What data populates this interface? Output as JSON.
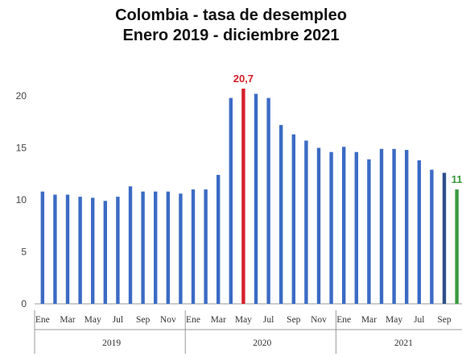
{
  "chart_data": {
    "type": "bar",
    "title": "Colombia - tasa de desempleo",
    "subtitle": "Enero 2019 - diciembre 2021",
    "xlabel": "",
    "ylabel": "",
    "ylim": [
      0,
      22
    ],
    "yticks": [
      "0",
      "5",
      "10",
      "15",
      "20"
    ],
    "month_labels": [
      "Ene",
      "Mar",
      "May",
      "Jul",
      "Sep",
      "Nov",
      "Ene",
      "Mar",
      "May",
      "Jul",
      "Sep",
      "Nov",
      "Ene",
      "Mar",
      "May",
      "Jul",
      "Sep"
    ],
    "years": [
      "2019",
      "2020",
      "2021"
    ],
    "values": [
      10.8,
      10.5,
      10.5,
      10.3,
      10.2,
      9.9,
      10.3,
      11.3,
      10.8,
      10.8,
      10.8,
      10.6,
      11.0,
      11.0,
      12.4,
      19.8,
      20.7,
      20.2,
      19.8,
      17.2,
      16.3,
      15.7,
      15.0,
      14.6,
      15.1,
      14.6,
      13.9,
      14.9,
      14.9,
      14.8,
      13.8,
      12.9,
      12.6,
      11.0
    ],
    "highlights": [
      {
        "index": 16,
        "label": "20,7",
        "color": "#d4202b"
      },
      {
        "index": 33,
        "label": "11",
        "color": "#3a9a3e"
      }
    ],
    "colors": {
      "bar": "#3b6bc4",
      "bar_dark": "#2f4f8a",
      "axis": "#999999"
    }
  }
}
